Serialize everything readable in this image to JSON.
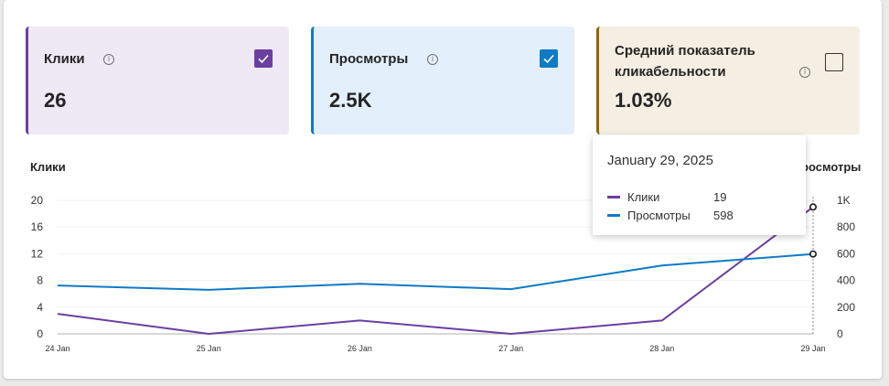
{
  "colors": {
    "clicks": "#6b3fa0",
    "impressions": "#0f7ac6",
    "ctr": "#8a6a00",
    "clicks_bg": "#efe9f5",
    "impressions_bg": "#e3effa",
    "ctr_bg": "#f4efe2"
  },
  "cards": [
    {
      "title": "Клики",
      "value": "26",
      "checked": true,
      "info_icon": "info-icon"
    },
    {
      "title": "Просмотры",
      "value": "2.5K",
      "checked": true,
      "info_icon": "info-icon"
    },
    {
      "title_line1": "Средний показатель",
      "title_line2": "кликабельности",
      "value": "1.03%",
      "checked": false,
      "info_icon": "info-icon"
    }
  ],
  "chart": {
    "left_axis_title": "Клики",
    "right_axis_title_visible": "росмотры"
  },
  "tooltip": {
    "date": "January 29, 2025",
    "rows": [
      {
        "label": "Клики",
        "value": "19"
      },
      {
        "label": "Просмотры",
        "value": "598"
      }
    ]
  },
  "chart_data": {
    "type": "line",
    "categories": [
      "24 Jan",
      "25 Jan",
      "26 Jan",
      "27 Jan",
      "28 Jan",
      "29 Jan"
    ],
    "series": [
      {
        "name": "Клики",
        "axis": "left",
        "values": [
          3,
          0,
          2,
          0,
          2,
          19
        ]
      },
      {
        "name": "Просмотры",
        "axis": "right",
        "values": [
          362,
          330,
          375,
          335,
          512,
          598
        ]
      }
    ],
    "left_ticks": [
      "0",
      "4",
      "8",
      "12",
      "16",
      "20"
    ],
    "left_ylim": [
      0,
      20
    ],
    "right_ticks": [
      "0",
      "200",
      "400",
      "600",
      "800",
      "1K"
    ],
    "right_ylim": [
      0,
      1000
    ],
    "grid": true,
    "legend": "none"
  }
}
